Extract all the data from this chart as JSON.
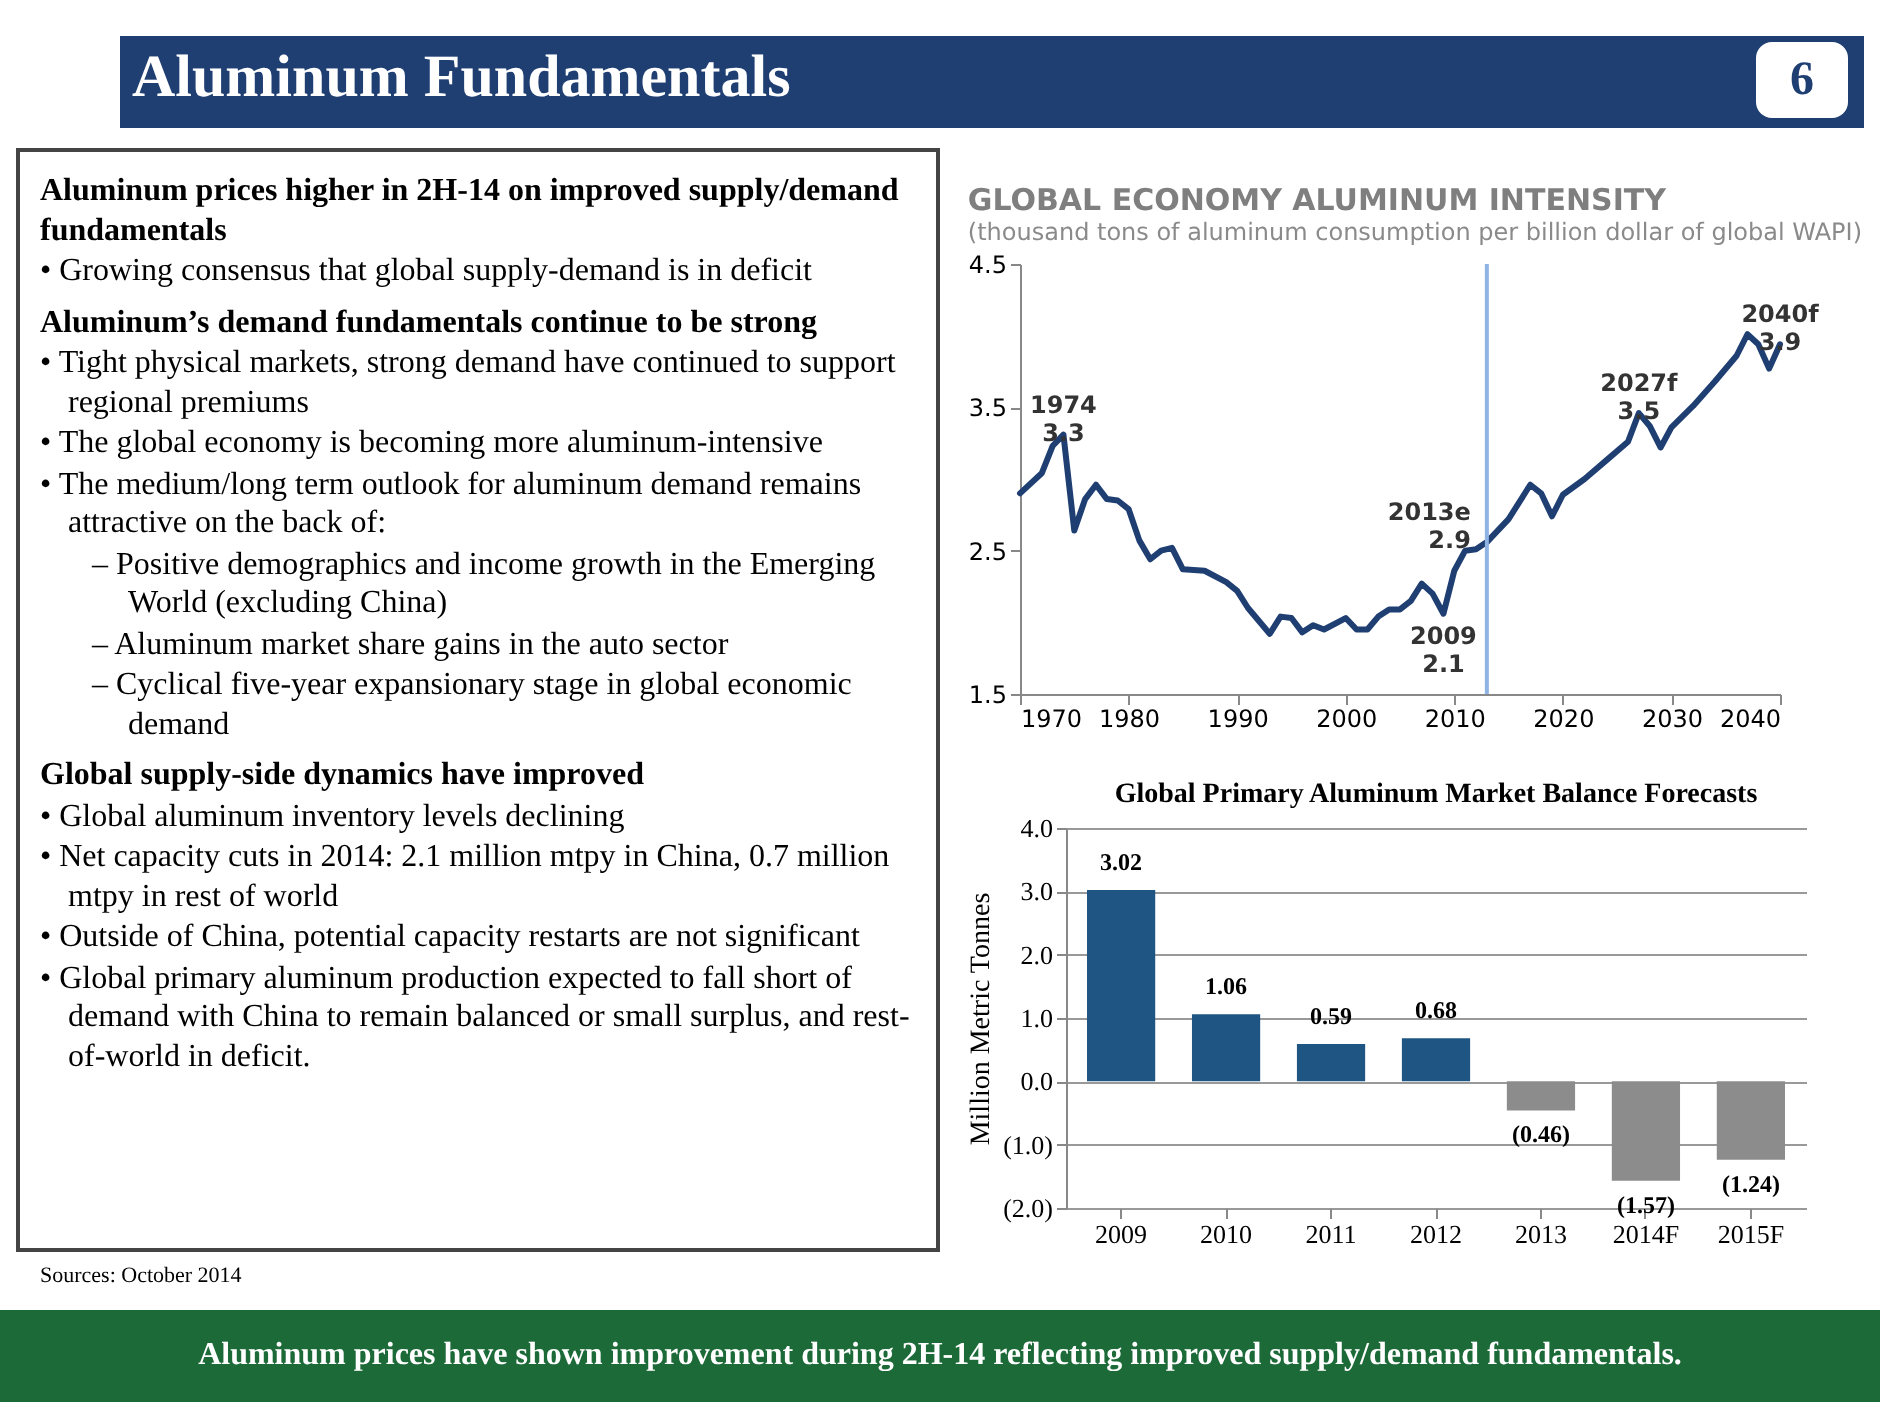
{
  "chart_data": [
    {
      "type": "other",
      "title": "Aluminum Fundamentals",
      "annotations": [
        "6"
      ]
    },
    {
      "type": "other",
      "annotations": [
        "Aluminum prices higher in 2H-14 on improved supply/demand fundamentals",
        "• Growing consensus that global supply-demand is in deficit",
        "Aluminum’s demand fundamentals continue to be strong",
        "• Tight physical markets, strong demand have continued to support regional premiums",
        "• The global economy is becoming more aluminum-intensive",
        "• The medium/long term outlook for aluminum demand remains attractive on the back of:",
        "– Positive demographics and income growth in the Emerging World (excluding China)",
        "– Aluminum market share gains in the auto sector",
        "– Cyclical five-year expansionary stage in global economic demand",
        "Global supply-side dynamics have improved",
        "• Global aluminum inventory levels declining",
        "• Net capacity cuts in 2014: 2.1 million mtpy in China, 0.7 million mtpy in rest of world",
        "• Outside of China, potential capacity restarts are not significant",
        "• Global primary aluminum production expected to fall short of demand with China to remain balanced or small surplus, and rest-of-world in deficit.",
        "Sources: October 2014"
      ]
    },
    {
      "type": "line",
      "title": "GLOBAL ECONOMY ALUMINUM INTENSITY",
      "subtitle": "(thousand tons of aluminum consumption per billion dollar of global WAPI)",
      "x": [
        1970,
        1972,
        1973,
        1974,
        1975,
        1976,
        1977,
        1978,
        1979,
        1980,
        1981,
        1982,
        1983,
        1984,
        1985,
        1987,
        1989,
        1990,
        1991,
        1993,
        1994,
        1995,
        1996,
        1997,
        1998,
        2000,
        2001,
        2002,
        2003,
        2004,
        2005,
        2006,
        2007,
        2008,
        2009,
        2010,
        2011,
        2012,
        2013,
        2015,
        2017,
        2018,
        2019,
        2020,
        2022,
        2024,
        2026,
        2027,
        2028,
        2029,
        2030,
        2032,
        2034,
        2036,
        2037,
        2038,
        2039,
        2040
      ],
      "series": [
        {
          "color": "#1f3f73",
          "values": [
            2.9,
            3.04,
            3.23,
            3.31,
            2.64,
            2.86,
            2.96,
            2.86,
            2.85,
            2.79,
            2.57,
            2.44,
            2.5,
            2.52,
            2.37,
            2.36,
            2.28,
            2.22,
            2.1,
            1.92,
            2.04,
            2.03,
            1.93,
            1.98,
            1.95,
            2.03,
            1.95,
            1.95,
            2.04,
            2.09,
            2.09,
            2.15,
            2.27,
            2.2,
            2.06,
            2.36,
            2.5,
            2.51,
            2.56,
            2.72,
            2.96,
            2.9,
            2.74,
            2.89,
            3.0,
            3.13,
            3.26,
            3.46,
            3.37,
            3.22,
            3.36,
            3.51,
            3.68,
            3.86,
            4.01,
            3.94,
            3.77,
            3.94
          ]
        }
      ],
      "xlim": [
        1970,
        2040
      ],
      "xticks": [
        1970,
        1980,
        1990,
        2000,
        2010,
        2020,
        2030,
        2040
      ],
      "ylim": [
        1.5,
        4.5
      ],
      "yticks": [
        1.5,
        2.5,
        3.5,
        4.5
      ],
      "ref_lines": [
        {
          "axis": "x",
          "value": 2013,
          "color": "#8eb4e3"
        }
      ],
      "annotations": [
        {
          "text": "1974\n3.3",
          "x": 1974,
          "y": 3.31
        },
        {
          "text": "2009\n2.1",
          "x": 2009,
          "y": 2.06
        },
        {
          "text": "2013e\n2.9",
          "x": 2013,
          "y": 2.56
        },
        {
          "text": "2027f\n3.5",
          "x": 2027,
          "y": 3.46
        },
        {
          "text": "2040f\n3.9",
          "x": 2040,
          "y": 3.94
        }
      ]
    },
    {
      "type": "bar",
      "title": "Global Primary Aluminum Market Balance Forecasts",
      "ylabel": "Million Metric Tonnes",
      "categories": [
        "2009",
        "2010",
        "2011",
        "2012",
        "2013",
        "2014F",
        "2015F"
      ],
      "values": [
        3.02,
        1.06,
        0.59,
        0.68,
        -0.46,
        -1.57,
        -1.24
      ],
      "colors": [
        "#1f5582",
        "#1f5582",
        "#1f5582",
        "#1f5582",
        "#8c8c8c",
        "#8c8c8c",
        "#8c8c8c"
      ],
      "value_labels": [
        "3.02",
        "1.06",
        "0.59",
        "0.68",
        "(0.46)",
        "(1.57)",
        "(1.24)"
      ],
      "ylim": [
        -2,
        4
      ],
      "yticks": [
        {
          "value": -2,
          "label": "(2.0)"
        },
        {
          "value": -1,
          "label": "(1.0)"
        },
        {
          "value": 0,
          "label": "0.0"
        },
        {
          "value": 1,
          "label": "1.0"
        },
        {
          "value": 2,
          "label": "2.0"
        },
        {
          "value": 3,
          "label": "3.0"
        },
        {
          "value": 4,
          "label": "4.0"
        }
      ],
      "grid": "y"
    },
    {
      "type": "other",
      "annotations": [
        "Aluminum prices have shown improvement during 2H-14 reflecting improved supply/demand fundamentals."
      ]
    }
  ]
}
